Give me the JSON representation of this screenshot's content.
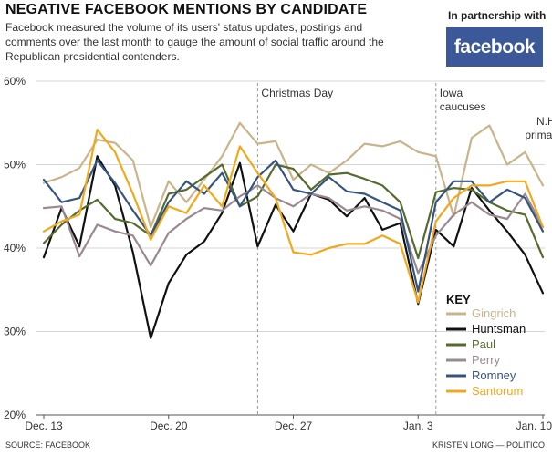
{
  "header": {
    "title": "NEGATIVE FACEBOOK MENTIONS BY CANDIDATE",
    "subtitle": "Facebook measured the volume of its users' status updates, postings and comments over the last month to gauge the amount of social traffic around the Republican presidential contenders.",
    "partner_label": "In partnership with",
    "logo_text": "facebook",
    "logo_color": "#3b5998"
  },
  "footer": {
    "source": "SOURCE: FACEBOOK",
    "credit": "KRISTEN LONG — POLITICO"
  },
  "chart_data": {
    "type": "line",
    "ylim": [
      20,
      60
    ],
    "yticks": [
      20,
      30,
      40,
      50,
      60
    ],
    "ytick_labels": [
      "20%",
      "30%",
      "40%",
      "50%",
      "60%"
    ],
    "x_count": 29,
    "xticks": [
      {
        "index": 0,
        "label": "Dec. 13"
      },
      {
        "index": 7,
        "label": "Dec. 20"
      },
      {
        "index": 14,
        "label": "Dec. 27"
      },
      {
        "index": 21,
        "label": "Jan. 3"
      },
      {
        "index": 28,
        "label": "Jan. 10"
      }
    ],
    "events": [
      {
        "index": 12,
        "label": [
          "Christmas Day"
        ]
      },
      {
        "index": 22,
        "label": [
          "Iowa",
          "caucuses"
        ]
      },
      {
        "index": 28,
        "label": [
          "N.H.",
          "primaries"
        ]
      }
    ],
    "legend_title": "KEY",
    "legend_position": "bottom-right",
    "grid": "horizontal",
    "series": [
      {
        "name": "Gingrich",
        "color": "#c9b48b",
        "values": [
          47.8,
          48.5,
          49.6,
          53.0,
          52.6,
          50.5,
          42.5,
          48.0,
          45.5,
          48.2,
          51.0,
          55.0,
          52.5,
          52.8,
          48.2,
          50.0,
          49.0,
          50.5,
          52.5,
          52.2,
          52.8,
          51.5,
          51.0,
          43.8,
          53.2,
          54.7,
          50.0,
          51.5,
          47.5
        ]
      },
      {
        "name": "Huntsman",
        "color": "#111111",
        "values": [
          38.9,
          44.8,
          40.2,
          51.0,
          47.5,
          39.5,
          29.2,
          35.8,
          39.2,
          40.8,
          44.2,
          50.2,
          40.2,
          45.2,
          42.0,
          46.5,
          45.8,
          43.8,
          46.0,
          42.2,
          43.0,
          33.3,
          42.2,
          40.2,
          47.2,
          44.5,
          42.0,
          39.2,
          34.6
        ]
      },
      {
        "name": "Paul",
        "color": "#556b2f",
        "values": [
          40.6,
          42.8,
          44.5,
          45.8,
          43.5,
          43.0,
          41.5,
          46.5,
          47.0,
          48.5,
          50.0,
          45.0,
          46.2,
          50.0,
          49.5,
          47.0,
          48.8,
          49.0,
          48.3,
          47.5,
          45.5,
          38.8,
          46.7,
          47.2,
          47.0,
          45.5,
          44.5,
          44.0,
          38.9
        ]
      },
      {
        "name": "Perry",
        "color": "#9a8a90",
        "values": [
          44.8,
          45.0,
          39.0,
          42.8,
          42.0,
          41.5,
          37.9,
          41.8,
          43.5,
          44.8,
          44.5,
          46.2,
          47.5,
          46.0,
          45.0,
          46.5,
          46.0,
          44.5,
          45.0,
          44.5,
          43.5,
          37.0,
          41.5,
          44.0,
          45.5,
          44.0,
          43.5,
          46.5,
          42.5
        ]
      },
      {
        "name": "Romney",
        "color": "#35557f",
        "values": [
          48.2,
          45.5,
          46.0,
          50.5,
          47.8,
          44.5,
          41.5,
          45.5,
          48.0,
          46.5,
          49.0,
          45.0,
          48.5,
          50.5,
          47.0,
          46.5,
          48.5,
          46.8,
          46.5,
          45.5,
          44.5,
          34.8,
          45.5,
          48.0,
          48.0,
          45.5,
          47.0,
          46.0,
          42.0
        ]
      },
      {
        "name": "Santorum",
        "color": "#f2a81d",
        "values": [
          42.0,
          43.2,
          44.0,
          54.2,
          51.5,
          46.5,
          41.0,
          45.0,
          44.2,
          47.5,
          45.0,
          52.2,
          49.0,
          46.0,
          39.5,
          39.2,
          40.0,
          40.5,
          40.5,
          41.5,
          40.5,
          33.5,
          43.2,
          46.0,
          47.5,
          47.5,
          48.0,
          48.0,
          42.5
        ]
      }
    ]
  }
}
